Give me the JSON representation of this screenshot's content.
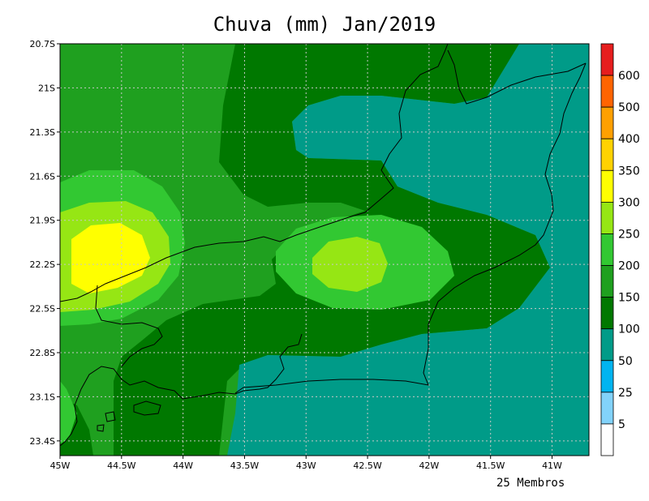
{
  "title": "Chuva (mm) Jan/2019",
  "footer_note": "25 Membros",
  "colors": {
    "c50_100": "#009b88",
    "c100_150": "#007800",
    "c150_200": "#1fa01f",
    "c200_250": "#32c832",
    "c250_300": "#96e614",
    "c300_350": "#ffff00",
    "grid": "#c8c8c8",
    "coast": "#000000"
  },
  "chart_data": {
    "type": "heatmap",
    "title": "Chuva (mm) Jan/2019",
    "variable": "Chuva (mm)",
    "period": "Jan/2019",
    "members": "25 Membros",
    "lon_range": [
      -45,
      -40.7
    ],
    "lat_range": [
      -23.5,
      -20.7
    ],
    "x_ticks": [
      "45W",
      "44.5W",
      "44W",
      "43.5W",
      "43W",
      "42.5W",
      "42W",
      "41.5W",
      "41W"
    ],
    "y_ticks": [
      "20.7S",
      "21S",
      "21.3S",
      "21.6S",
      "21.9S",
      "22.2S",
      "22.5S",
      "22.8S",
      "23.1S",
      "23.4S"
    ],
    "grid": true,
    "colorbar": {
      "placement": "right",
      "levels": [
        "5",
        "25",
        "50",
        "100",
        "150",
        "200",
        "250",
        "300",
        "350",
        "400",
        "500",
        "600"
      ],
      "colors": [
        "#ffffff",
        "#82d2fa",
        "#00b4f0",
        "#009b88",
        "#007800",
        "#1fa01f",
        "#32c832",
        "#96e614",
        "#ffff00",
        "#ffd200",
        "#ffa000",
        "#ff6400",
        "#e61e1e"
      ]
    },
    "features": [
      {
        "region": "maximum near 44.7W 22.2S",
        "range_mm": "300-350"
      },
      {
        "region": "maximum near 42.6W 22.2S",
        "range_mm": "250-300"
      },
      {
        "region": "eastern / coastal area",
        "range_mm": "50-100"
      }
    ]
  }
}
